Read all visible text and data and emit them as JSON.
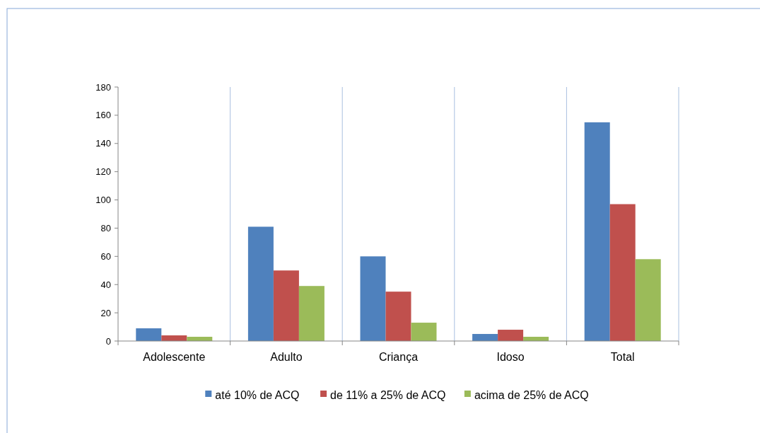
{
  "chart_data": {
    "type": "bar",
    "categories": [
      "Adolescente",
      "Adulto",
      "Criança",
      "Idoso",
      "Total"
    ],
    "series": [
      {
        "name": "até 10% de ACQ",
        "color": "#4f81bd",
        "values": [
          9,
          81,
          60,
          5,
          155
        ]
      },
      {
        "name": "de 11% a 25% de ACQ",
        "color": "#c0504d",
        "values": [
          4,
          50,
          35,
          8,
          97
        ]
      },
      {
        "name": "acima de 25% de ACQ",
        "color": "#9bbb59",
        "values": [
          3,
          39,
          13,
          3,
          58
        ]
      }
    ],
    "ylim": [
      0,
      180
    ],
    "yticks": [
      0,
      20,
      40,
      60,
      80,
      100,
      120,
      140,
      160,
      180
    ],
    "grid": "x",
    "legend": "bottom"
  }
}
